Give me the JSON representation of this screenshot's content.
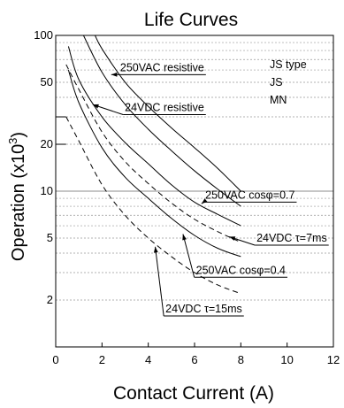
{
  "chart_data": {
    "type": "line",
    "title": "Life Curves",
    "xlabel": "Contact Current (A)",
    "ylabel_main": "Operation (x10",
    "ylabel_sup": "3",
    "ylabel_close": ")",
    "xlim": [
      0,
      12
    ],
    "ylim": [
      1,
      100
    ],
    "yscale": "log",
    "x_ticks": [
      0,
      2,
      4,
      6,
      8,
      10,
      12
    ],
    "x_tick_labels": [
      "0",
      "2",
      "4",
      "6",
      "8",
      "10",
      "12"
    ],
    "y_ticks": [
      2,
      5,
      10,
      20,
      50,
      100
    ],
    "y_tick_labels": [
      "2",
      "5",
      "10",
      "20",
      "50",
      "100"
    ],
    "grid": true,
    "legend_lines": [
      "JS type",
      "JS",
      "MN"
    ],
    "series": [
      {
        "name": "250VAC resistive",
        "style": "solid",
        "x": [
          1.7,
          2,
          3,
          4,
          5,
          6,
          7,
          8
        ],
        "y": [
          100,
          82,
          50,
          35,
          25.5,
          19,
          14,
          10
        ]
      },
      {
        "name": "24VDC resistive",
        "style": "solid",
        "x": [
          1.2,
          2,
          3,
          4,
          5,
          6,
          7,
          8
        ],
        "y": [
          100,
          58,
          36,
          25,
          18.2,
          13.5,
          10.3,
          8
        ]
      },
      {
        "name": "250VAC cosφ=0.7",
        "style": "solid",
        "x": [
          0.55,
          1,
          2,
          3,
          4,
          5,
          6,
          7,
          8
        ],
        "y": [
          85,
          52,
          30,
          20.5,
          15,
          11,
          8.5,
          7.1,
          6
        ]
      },
      {
        "name": "24VDC τ=7ms",
        "style": "dashed",
        "x": [
          0.45,
          1,
          2,
          3,
          4,
          5,
          6,
          7,
          8
        ],
        "y": [
          65,
          45,
          24,
          15.5,
          11.2,
          8.4,
          6.6,
          5.5,
          4.7
        ]
      },
      {
        "name": "250VAC cosφ=0.4",
        "style": "solid",
        "x": [
          0.55,
          1,
          2,
          3,
          4,
          5,
          6,
          7,
          8
        ],
        "y": [
          60,
          37,
          19,
          12.3,
          9,
          6.7,
          5.2,
          4.3,
          3.8
        ]
      },
      {
        "name": "24VDC τ=15ms",
        "style": "dashed",
        "x": [
          0.45,
          1,
          2,
          3,
          4,
          5,
          6,
          7,
          8
        ],
        "y": [
          30,
          21,
          11,
          7,
          5,
          3.8,
          3,
          2.5,
          2.2
        ]
      }
    ],
    "start_steps": [
      {
        "y": 30,
        "x0": 0,
        "x1": 0.45
      },
      {
        "y": 20,
        "x0": 0,
        "x1": 0.45
      }
    ],
    "annotations": [
      {
        "text": "250VAC resistive",
        "point": [
          2.4,
          56
        ],
        "label": [
          4.6,
          56
        ],
        "label_align": "center"
      },
      {
        "text": "24VDC resistive",
        "point": [
          1.6,
          36
        ],
        "label": [
          4.7,
          31
        ],
        "label_align": "center"
      },
      {
        "text": "250VAC cosφ=0.7",
        "point": [
          6.3,
          8.3
        ],
        "label": [
          8.4,
          8.5
        ],
        "label_align": "center"
      },
      {
        "text": "24VDC τ=7ms",
        "point": [
          7.5,
          5.1
        ],
        "label": [
          10.2,
          4.5
        ],
        "label_align": "center"
      },
      {
        "text": "250VAC cosφ=0.4",
        "point": [
          5.5,
          5.3
        ],
        "label": [
          8.0,
          2.8
        ],
        "label_align": "center"
      },
      {
        "text": "24VDC τ=15ms",
        "point": [
          4.3,
          4.4
        ],
        "label": [
          6.4,
          1.58
        ],
        "label_align": "center"
      }
    ]
  }
}
